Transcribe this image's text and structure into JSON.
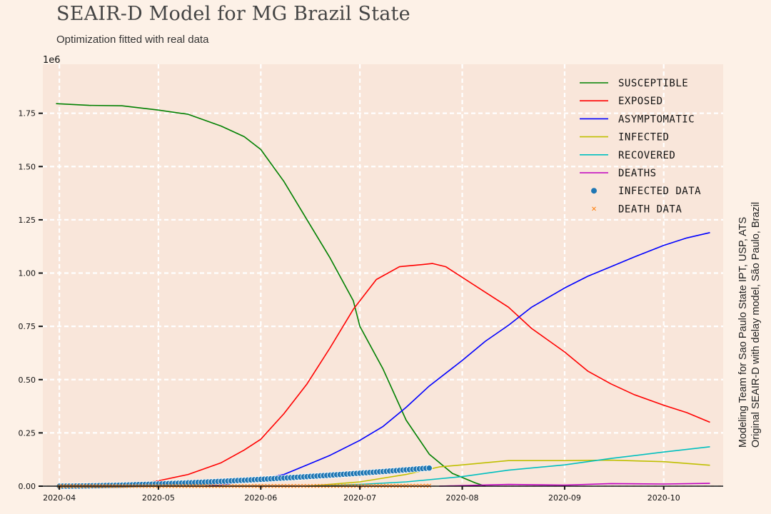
{
  "title": "SEAIR-D Model for MG Brazil State",
  "subtitle": "Optimization fitted with real data",
  "side_note": [
    "Modeling Team for Sao Paulo State IPT, USP, ATS",
    "Original SEAIR-D with delay model, São Paulo, Brazil"
  ],
  "colors": {
    "background": "#fdf1e7",
    "plot_background": "#f9e6da",
    "grid": "#ffffff"
  },
  "chart_data": {
    "type": "line",
    "title": "SEAIR-D Model for MG Brazil State",
    "subtitle": "Optimization fitted with real data",
    "xlabel": "",
    "ylabel": "",
    "y_scale_label": "1e6",
    "x_type": "date",
    "xlim": [
      "2020-03-27",
      "2020-10-19"
    ],
    "ylim": [
      0,
      1.98
    ],
    "x_ticks": [
      "2020-04-01",
      "2020-05-01",
      "2020-06-01",
      "2020-07-01",
      "2020-08-01",
      "2020-09-01",
      "2020-10-01"
    ],
    "x_tick_labels": [
      "2020-04",
      "2020-05",
      "2020-06",
      "2020-07",
      "2020-08",
      "2020-09",
      "2020-10"
    ],
    "y_ticks": [
      0,
      0.25,
      0.5,
      0.75,
      1.0,
      1.25,
      1.5,
      1.75
    ],
    "y_tick_labels": [
      "0.00",
      "0.25",
      "0.50",
      "0.75",
      "1.00",
      "1.25",
      "1.50",
      "1.75"
    ],
    "grid": true,
    "legend_position": "top-right",
    "series": [
      {
        "name": "Susceptible",
        "legend_label": "SUSCEPTIBLE",
        "color": "#008000",
        "style": "line",
        "x": [
          "2020-03-31",
          "2020-04-10",
          "2020-04-20",
          "2020-05-01",
          "2020-05-10",
          "2020-05-20",
          "2020-05-27",
          "2020-06-01",
          "2020-06-08",
          "2020-06-15",
          "2020-06-22",
          "2020-06-29",
          "2020-07-01",
          "2020-07-08",
          "2020-07-15",
          "2020-07-22",
          "2020-07-29",
          "2020-08-05",
          "2020-08-08"
        ],
        "y": [
          1.795,
          1.787,
          1.785,
          1.765,
          1.745,
          1.69,
          1.64,
          1.58,
          1.43,
          1.25,
          1.07,
          0.87,
          0.75,
          0.55,
          0.31,
          0.15,
          0.06,
          0.015,
          0.0
        ]
      },
      {
        "name": "Exposed",
        "legend_label": "EXPOSED",
        "color": "#ff0000",
        "style": "line",
        "x": [
          "2020-04-20",
          "2020-05-01",
          "2020-05-10",
          "2020-05-20",
          "2020-05-27",
          "2020-06-01",
          "2020-06-08",
          "2020-06-15",
          "2020-06-22",
          "2020-06-29",
          "2020-07-06",
          "2020-07-13",
          "2020-07-20",
          "2020-07-23",
          "2020-07-27",
          "2020-08-01",
          "2020-08-08",
          "2020-08-15",
          "2020-08-22",
          "2020-09-01",
          "2020-09-08",
          "2020-09-15",
          "2020-09-22",
          "2020-10-01",
          "2020-10-08",
          "2020-10-15"
        ],
        "y": [
          0.0,
          0.025,
          0.055,
          0.11,
          0.17,
          0.22,
          0.34,
          0.48,
          0.65,
          0.83,
          0.97,
          1.03,
          1.04,
          1.045,
          1.03,
          0.98,
          0.91,
          0.84,
          0.74,
          0.63,
          0.54,
          0.48,
          0.43,
          0.38,
          0.345,
          0.3
        ]
      },
      {
        "name": "Asymptomatic",
        "legend_label": "ASYMPTOMATIC",
        "color": "#0000ff",
        "style": "line",
        "x": [
          "2020-05-15",
          "2020-05-22",
          "2020-06-01",
          "2020-06-08",
          "2020-06-15",
          "2020-06-22",
          "2020-07-01",
          "2020-07-08",
          "2020-07-15",
          "2020-07-22",
          "2020-08-01",
          "2020-08-08",
          "2020-08-15",
          "2020-08-22",
          "2020-09-01",
          "2020-09-08",
          "2020-09-15",
          "2020-09-22",
          "2020-10-01",
          "2020-10-08",
          "2020-10-15"
        ],
        "y": [
          0.0,
          0.01,
          0.035,
          0.055,
          0.1,
          0.145,
          0.215,
          0.28,
          0.37,
          0.47,
          0.59,
          0.68,
          0.755,
          0.84,
          0.93,
          0.985,
          1.03,
          1.075,
          1.13,
          1.165,
          1.19
        ]
      },
      {
        "name": "Infected",
        "legend_label": "INFECTED",
        "color": "#bfbf00",
        "style": "line",
        "x": [
          "2020-06-15",
          "2020-07-01",
          "2020-07-15",
          "2020-07-25",
          "2020-08-01",
          "2020-08-15",
          "2020-09-01",
          "2020-09-15",
          "2020-10-01",
          "2020-10-15"
        ],
        "y": [
          0.0,
          0.02,
          0.055,
          0.09,
          0.1,
          0.12,
          0.12,
          0.122,
          0.115,
          0.098
        ]
      },
      {
        "name": "Recovered",
        "legend_label": "RECOVERED",
        "color": "#00bfbf",
        "style": "line",
        "x": [
          "2020-06-15",
          "2020-07-01",
          "2020-07-15",
          "2020-08-01",
          "2020-08-15",
          "2020-09-01",
          "2020-09-15",
          "2020-10-01",
          "2020-10-15"
        ],
        "y": [
          0.0,
          0.008,
          0.02,
          0.045,
          0.075,
          0.1,
          0.13,
          0.16,
          0.185
        ]
      },
      {
        "name": "Deaths",
        "legend_label": "DEATHS",
        "color": "#bf00bf",
        "style": "line",
        "x": [
          "2020-07-25",
          "2020-08-15",
          "2020-09-01",
          "2020-09-15",
          "2020-10-01",
          "2020-10-15"
        ],
        "y": [
          0.0,
          0.008,
          0.005,
          0.012,
          0.01,
          0.013
        ]
      },
      {
        "name": "Infected data",
        "legend_label": "INFECTED DATA",
        "color": "#1f77b4",
        "style": "points",
        "x_start": "2020-04-01",
        "x_end": "2020-07-22",
        "y_start": 0.0,
        "y_end": 0.085,
        "count": 113
      },
      {
        "name": "Death data",
        "legend_label": "DEATH DATA",
        "color": "#ff7f0e",
        "style": "cross",
        "x_start": "2020-04-01",
        "x_end": "2020-07-22",
        "y_start": 0.0,
        "y_end": 0.002,
        "count": 113
      }
    ]
  }
}
